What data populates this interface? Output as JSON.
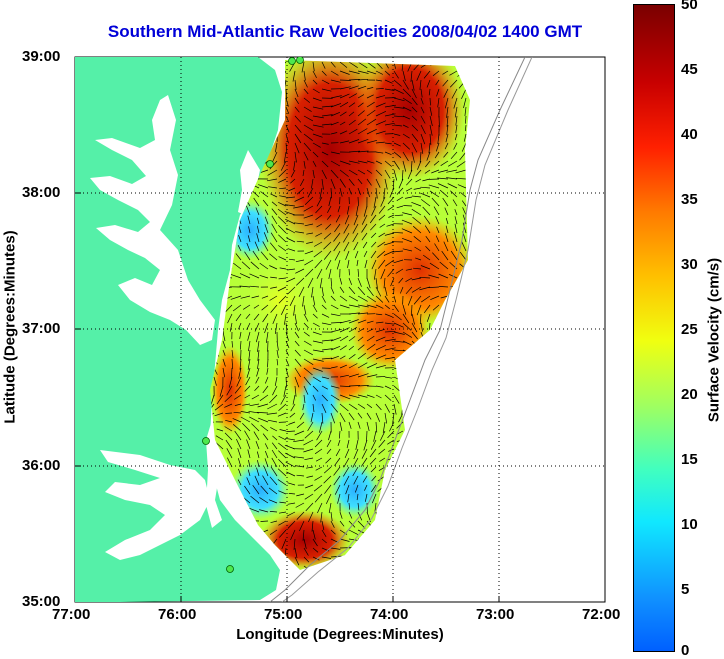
{
  "title": "Southern Mid-Atlantic Raw Velocities 2008/04/02 1400 GMT",
  "xlabel": "Longitude (Degrees:Minutes)",
  "ylabel": "Latitude (Degrees:Minutes)",
  "colorbar_label": "Surface Velocity (cm/s)",
  "x_ticks": [
    "77:00",
    "76:00",
    "75:00",
    "74:00",
    "73:00",
    "72:00"
  ],
  "y_ticks": [
    "39:00",
    "38:00",
    "37:00",
    "36:00",
    "35:00"
  ],
  "colorbar_ticks": [
    "50",
    "45",
    "40",
    "35",
    "30",
    "25",
    "20",
    "15",
    "10",
    "5",
    "0"
  ],
  "colors": {
    "land": "#55f0a8",
    "title": "#0000d8",
    "station": "#4ee84e"
  },
  "colorbar_range": [
    0,
    50
  ],
  "axis_range": {
    "lon": [
      -77,
      -72
    ],
    "lat": [
      35,
      39
    ]
  }
}
